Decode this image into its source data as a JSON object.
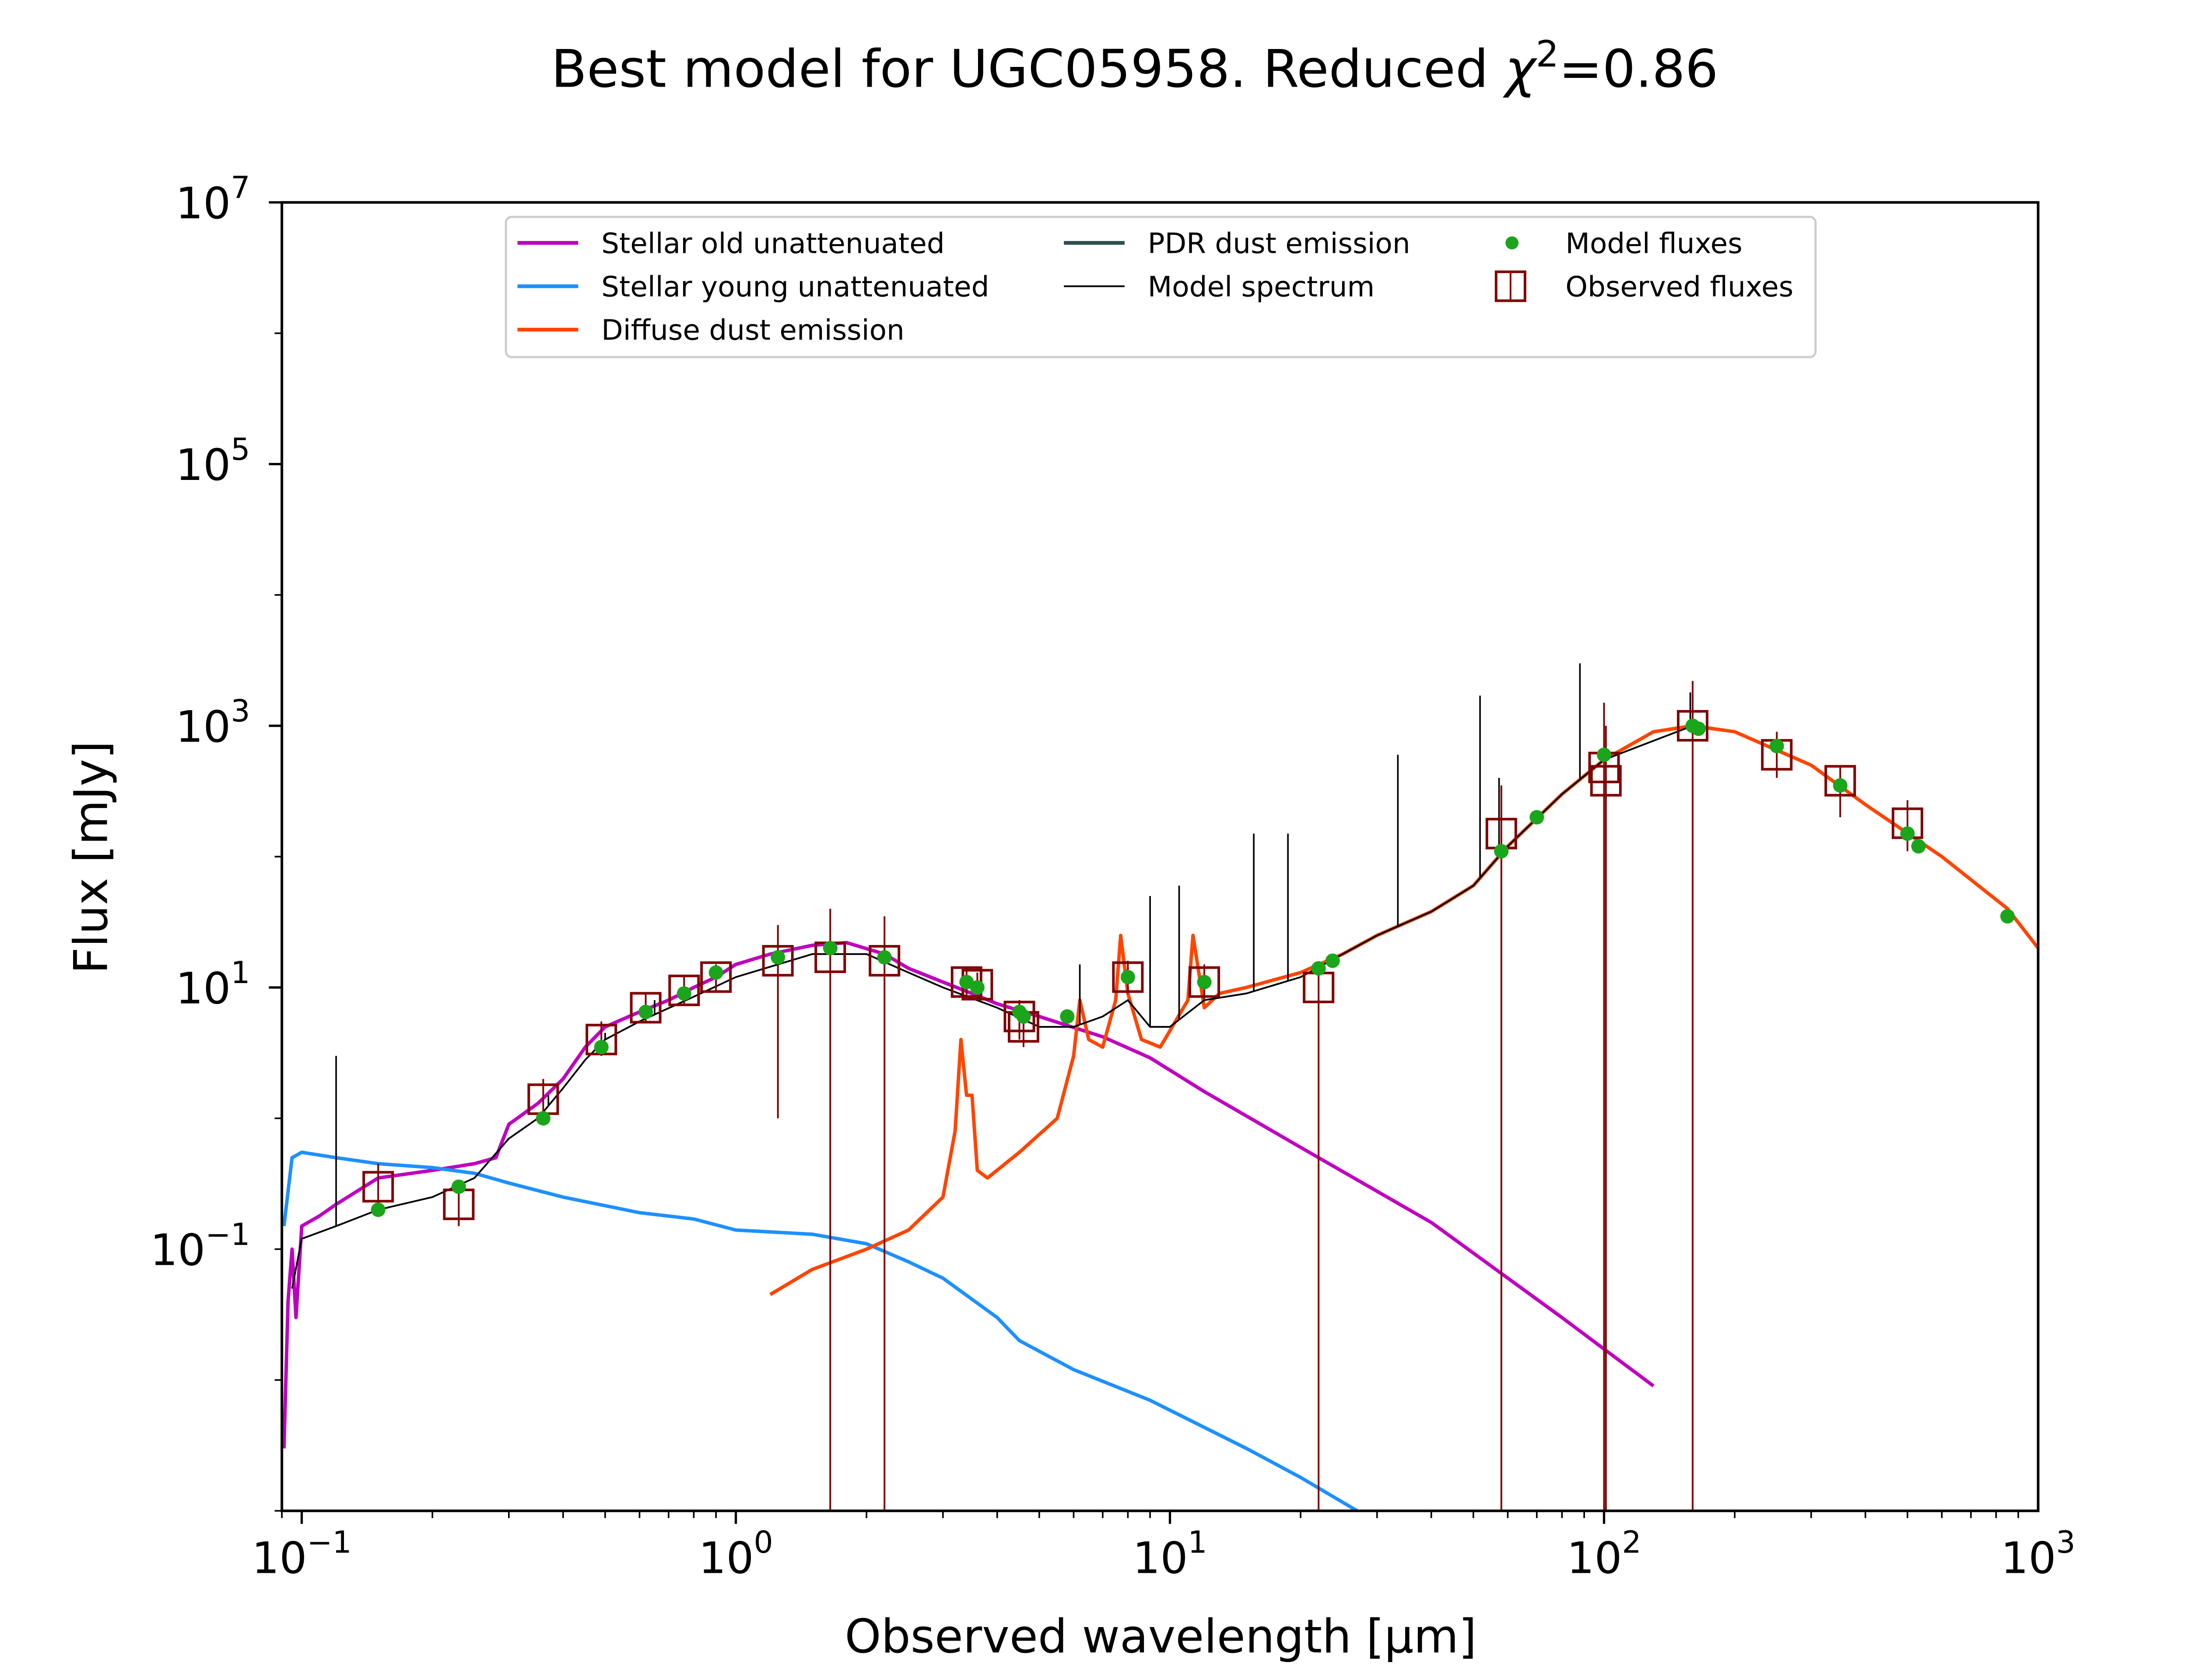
{
  "chart_data": {
    "type": "line",
    "title": "Best model for UGC05958. Reduced χ²=0.86",
    "title_main": "Best model for UGC05958. Reduced ",
    "title_chi": "χ",
    "title_sup": "2",
    "title_rest": "=0.86",
    "xlabel": "Observed wavelength [μm]",
    "ylabel": "Flux [mJy]",
    "x_scale": "log",
    "y_scale": "log",
    "xlim": [
      0.09,
      1000
    ],
    "ylim": [
      0.001,
      10000000
    ],
    "x_ticks": [
      {
        "value": 0.1,
        "base": "10",
        "exp": "−1"
      },
      {
        "value": 1,
        "base": "10",
        "exp": "0"
      },
      {
        "value": 10,
        "base": "10",
        "exp": "1"
      },
      {
        "value": 100,
        "base": "10",
        "exp": "2"
      },
      {
        "value": 1000,
        "base": "10",
        "exp": "3"
      }
    ],
    "y_ticks": [
      {
        "value": 0.1,
        "base": "10",
        "exp": "−1"
      },
      {
        "value": 10,
        "base": "10",
        "exp": "1"
      },
      {
        "value": 1000,
        "base": "10",
        "exp": "3"
      },
      {
        "value": 100000,
        "base": "10",
        "exp": "5"
      },
      {
        "value": 10000000,
        "base": "10",
        "exp": "7"
      }
    ],
    "grid": false,
    "legend_position": "top-center",
    "legend": [
      {
        "label": "Stellar old unattenuated",
        "color": "#bf00bf",
        "kind": "line"
      },
      {
        "label": "Stellar young unattenuated",
        "color": "#1e90ff",
        "kind": "line"
      },
      {
        "label": "Diffuse dust emission",
        "color": "#ff4500",
        "kind": "line"
      },
      {
        "label": "PDR dust emission",
        "color": "#2f4f4f",
        "kind": "line"
      },
      {
        "label": "Model spectrum",
        "color": "#000000",
        "kind": "thinline"
      },
      {
        "label": "Model fluxes",
        "color": "#1aa51a",
        "kind": "dot"
      },
      {
        "label": "Observed fluxes",
        "color": "#800000",
        "kind": "square"
      }
    ],
    "series": [
      {
        "name": "Stellar old unattenuated",
        "color": "#bf00bf",
        "points": [
          [
            0.091,
            0.003
          ],
          [
            0.093,
            0.04
          ],
          [
            0.095,
            0.1
          ],
          [
            0.097,
            0.03
          ],
          [
            0.1,
            0.15
          ],
          [
            0.11,
            0.18
          ],
          [
            0.12,
            0.22
          ],
          [
            0.15,
            0.35
          ],
          [
            0.2,
            0.4
          ],
          [
            0.25,
            0.45
          ],
          [
            0.28,
            0.5
          ],
          [
            0.3,
            0.9
          ],
          [
            0.35,
            1.3
          ],
          [
            0.4,
            2.0
          ],
          [
            0.45,
            3.5
          ],
          [
            0.5,
            5.0
          ],
          [
            0.6,
            6.5
          ],
          [
            0.7,
            8.0
          ],
          [
            0.8,
            10.0
          ],
          [
            0.9,
            12.0
          ],
          [
            1.0,
            15.0
          ],
          [
            1.2,
            18.0
          ],
          [
            1.5,
            21.0
          ],
          [
            1.8,
            22.0
          ],
          [
            2.2,
            18.0
          ],
          [
            2.5,
            14.0
          ],
          [
            3.0,
            11.0
          ],
          [
            3.5,
            9.0
          ],
          [
            4.0,
            7.5
          ],
          [
            5.0,
            6.0
          ],
          [
            7.0,
            4.2
          ],
          [
            9.0,
            2.9
          ],
          [
            12.0,
            1.6
          ],
          [
            20.0,
            0.6
          ],
          [
            40.0,
            0.16
          ],
          [
            80.0,
            0.03
          ],
          [
            130.0,
            0.009
          ]
        ]
      },
      {
        "name": "Stellar young unattenuated",
        "color": "#1e90ff",
        "points": [
          [
            0.091,
            0.15
          ],
          [
            0.095,
            0.5
          ],
          [
            0.1,
            0.55
          ],
          [
            0.12,
            0.5
          ],
          [
            0.15,
            0.45
          ],
          [
            0.2,
            0.42
          ],
          [
            0.25,
            0.38
          ],
          [
            0.3,
            0.32
          ],
          [
            0.4,
            0.25
          ],
          [
            0.6,
            0.19
          ],
          [
            0.8,
            0.17
          ],
          [
            1.0,
            0.14
          ],
          [
            1.5,
            0.13
          ],
          [
            2.0,
            0.11
          ],
          [
            2.5,
            0.08
          ],
          [
            3.0,
            0.06
          ],
          [
            4.0,
            0.03
          ],
          [
            4.5,
            0.02
          ],
          [
            6.0,
            0.012
          ],
          [
            9.0,
            0.007
          ],
          [
            15.0,
            0.003
          ],
          [
            20.0,
            0.0018
          ],
          [
            27.0,
            0.001
          ]
        ]
      },
      {
        "name": "Diffuse dust emission",
        "color": "#ff4500",
        "points": [
          [
            1.2,
            0.045
          ],
          [
            1.5,
            0.07
          ],
          [
            2.0,
            0.1
          ],
          [
            2.5,
            0.14
          ],
          [
            3.0,
            0.25
          ],
          [
            3.2,
            0.8
          ],
          [
            3.3,
            4.0
          ],
          [
            3.4,
            1.5
          ],
          [
            3.5,
            1.5
          ],
          [
            3.6,
            0.4
          ],
          [
            3.8,
            0.35
          ],
          [
            4.5,
            0.55
          ],
          [
            5.5,
            1.0
          ],
          [
            6.0,
            3.0
          ],
          [
            6.2,
            8.0
          ],
          [
            6.5,
            4.0
          ],
          [
            7.0,
            3.5
          ],
          [
            7.5,
            8.0
          ],
          [
            7.7,
            25.0
          ],
          [
            8.0,
            9.0
          ],
          [
            8.6,
            4.0
          ],
          [
            9.5,
            3.5
          ],
          [
            11.0,
            8.0
          ],
          [
            11.3,
            25.0
          ],
          [
            12.0,
            7.0
          ],
          [
            13.0,
            9.0
          ],
          [
            15.0,
            10.0
          ],
          [
            20.0,
            13.0
          ],
          [
            25.0,
            18.0
          ],
          [
            30.0,
            25.0
          ],
          [
            40.0,
            38.0
          ],
          [
            50.0,
            60.0
          ],
          [
            60.0,
            120.0
          ],
          [
            80.0,
            300.0
          ],
          [
            100.0,
            550.0
          ],
          [
            130.0,
            900.0
          ],
          [
            160.0,
            1000.0
          ],
          [
            200.0,
            900.0
          ],
          [
            300.0,
            500.0
          ],
          [
            400.0,
            250.0
          ],
          [
            600.0,
            100.0
          ],
          [
            850.0,
            40.0
          ],
          [
            1000.0,
            20.0
          ]
        ]
      },
      {
        "name": "Model spectrum",
        "color": "#000000",
        "points": [
          [
            0.095,
            0.05
          ],
          [
            0.1,
            0.12
          ],
          [
            0.12,
            0.15
          ],
          [
            0.15,
            0.2
          ],
          [
            0.2,
            0.25
          ],
          [
            0.25,
            0.35
          ],
          [
            0.3,
            0.7
          ],
          [
            0.35,
            1.0
          ],
          [
            0.4,
            1.7
          ],
          [
            0.45,
            2.8
          ],
          [
            0.5,
            4.0
          ],
          [
            0.6,
            5.5
          ],
          [
            0.8,
            8.5
          ],
          [
            1.0,
            12.0
          ],
          [
            1.5,
            18.0
          ],
          [
            2.0,
            18.0
          ],
          [
            2.5,
            13.0
          ],
          [
            3.0,
            10.0
          ],
          [
            4.0,
            7.0
          ],
          [
            5.0,
            5.0
          ],
          [
            6.0,
            5.0
          ],
          [
            7.0,
            6.0
          ],
          [
            8.0,
            8.0
          ],
          [
            9.0,
            5.0
          ],
          [
            10.0,
            5.0
          ],
          [
            12.0,
            8.0
          ],
          [
            15.0,
            9.0
          ],
          [
            20.0,
            12.0
          ],
          [
            25.0,
            18.0
          ],
          [
            30.0,
            25.0
          ],
          [
            40.0,
            38.0
          ],
          [
            50.0,
            60.0
          ],
          [
            60.0,
            120.0
          ],
          [
            80.0,
            300.0
          ],
          [
            100.0,
            550.0
          ],
          [
            160.0,
            1000.0
          ]
        ]
      }
    ],
    "emission_lines": [
      [
        0.12,
        3.0
      ],
      [
        0.37,
        1.5
      ],
      [
        0.5,
        4.5
      ],
      [
        0.65,
        8.0
      ],
      [
        6.2,
        15.0
      ],
      [
        9.0,
        50.0
      ],
      [
        10.5,
        60.0
      ],
      [
        15.6,
        150.0
      ],
      [
        18.7,
        150.0
      ],
      [
        33.5,
        600.0
      ],
      [
        51.8,
        1700.0
      ],
      [
        57.3,
        400.0
      ],
      [
        88.0,
        3000.0
      ],
      [
        158.0,
        1800.0
      ]
    ],
    "model_fluxes": [
      [
        0.15,
        0.2
      ],
      [
        0.23,
        0.3
      ],
      [
        0.36,
        1.0
      ],
      [
        0.49,
        3.5
      ],
      [
        0.62,
        6.5
      ],
      [
        0.76,
        9.0
      ],
      [
        0.9,
        13.0
      ],
      [
        1.25,
        17.0
      ],
      [
        1.65,
        20.0
      ],
      [
        2.2,
        17.0
      ],
      [
        3.4,
        11.0
      ],
      [
        3.6,
        10.0
      ],
      [
        4.5,
        6.5
      ],
      [
        4.6,
        6.0
      ],
      [
        5.8,
        6.0
      ],
      [
        8.0,
        12.0
      ],
      [
        12.0,
        11.0
      ],
      [
        22.0,
        14.0
      ],
      [
        23.7,
        16.0
      ],
      [
        58.0,
        110.0
      ],
      [
        70.0,
        200.0
      ],
      [
        100.0,
        600.0
      ],
      [
        160.0,
        1000.0
      ],
      [
        165.0,
        950.0
      ],
      [
        250.0,
        700.0
      ],
      [
        350.0,
        350.0
      ],
      [
        500.0,
        150.0
      ],
      [
        530.0,
        120.0
      ],
      [
        850.0,
        35.0
      ]
    ],
    "observed_fluxes": [
      {
        "x": 0.15,
        "y": 0.3,
        "ylo": 0.19,
        "yhi": 0.45
      },
      {
        "x": 0.23,
        "y": 0.22,
        "ylo": 0.15,
        "yhi": 0.33
      },
      {
        "x": 0.36,
        "y": 1.4,
        "ylo": 0.95,
        "yhi": 2.0
      },
      {
        "x": 0.49,
        "y": 4.0,
        "ylo": 3.0,
        "yhi": 5.5
      },
      {
        "x": 0.62,
        "y": 7.0,
        "ylo": 5.5,
        "yhi": 9.0
      },
      {
        "x": 0.76,
        "y": 9.5,
        "ylo": 7.5,
        "yhi": 12.0
      },
      {
        "x": 0.9,
        "y": 12.0,
        "ylo": 9.5,
        "yhi": 15.0
      },
      {
        "x": 1.25,
        "y": 16.0,
        "ylo": 1.0,
        "yhi": 30.0
      },
      {
        "x": 1.65,
        "y": 17.0,
        "ylo": 0.001,
        "yhi": 40.0
      },
      {
        "x": 2.2,
        "y": 16.0,
        "ylo": 0.001,
        "yhi": 35.0
      },
      {
        "x": 3.4,
        "y": 11.0,
        "ylo": 8.0,
        "yhi": 14.0
      },
      {
        "x": 3.6,
        "y": 10.5,
        "ylo": 8.0,
        "yhi": 13.0
      },
      {
        "x": 4.5,
        "y": 6.0,
        "ylo": 4.0,
        "yhi": 8.0
      },
      {
        "x": 4.6,
        "y": 5.0,
        "ylo": 3.5,
        "yhi": 7.0
      },
      {
        "x": 8.0,
        "y": 12.0,
        "ylo": 9.0,
        "yhi": 16.0
      },
      {
        "x": 12.0,
        "y": 11.0,
        "ylo": 8.0,
        "yhi": 15.0
      },
      {
        "x": 22.0,
        "y": 10.0,
        "ylo": 0.001,
        "yhi": 15.0
      },
      {
        "x": 58.0,
        "y": 150.0,
        "ylo": 0.001,
        "yhi": 350.0
      },
      {
        "x": 100.0,
        "y": 480.0,
        "ylo": 0.001,
        "yhi": 1500.0
      },
      {
        "x": 101.0,
        "y": 380.0,
        "ylo": 0.001,
        "yhi": 1000.0
      },
      {
        "x": 160.0,
        "y": 1000.0,
        "ylo": 0.001,
        "yhi": 2200.0
      },
      {
        "x": 250.0,
        "y": 600.0,
        "ylo": 400.0,
        "yhi": 900.0
      },
      {
        "x": 350.0,
        "y": 380.0,
        "ylo": 200.0,
        "yhi": 500.0
      },
      {
        "x": 500.0,
        "y": 180.0,
        "ylo": 110.0,
        "yhi": 270.0
      }
    ]
  }
}
